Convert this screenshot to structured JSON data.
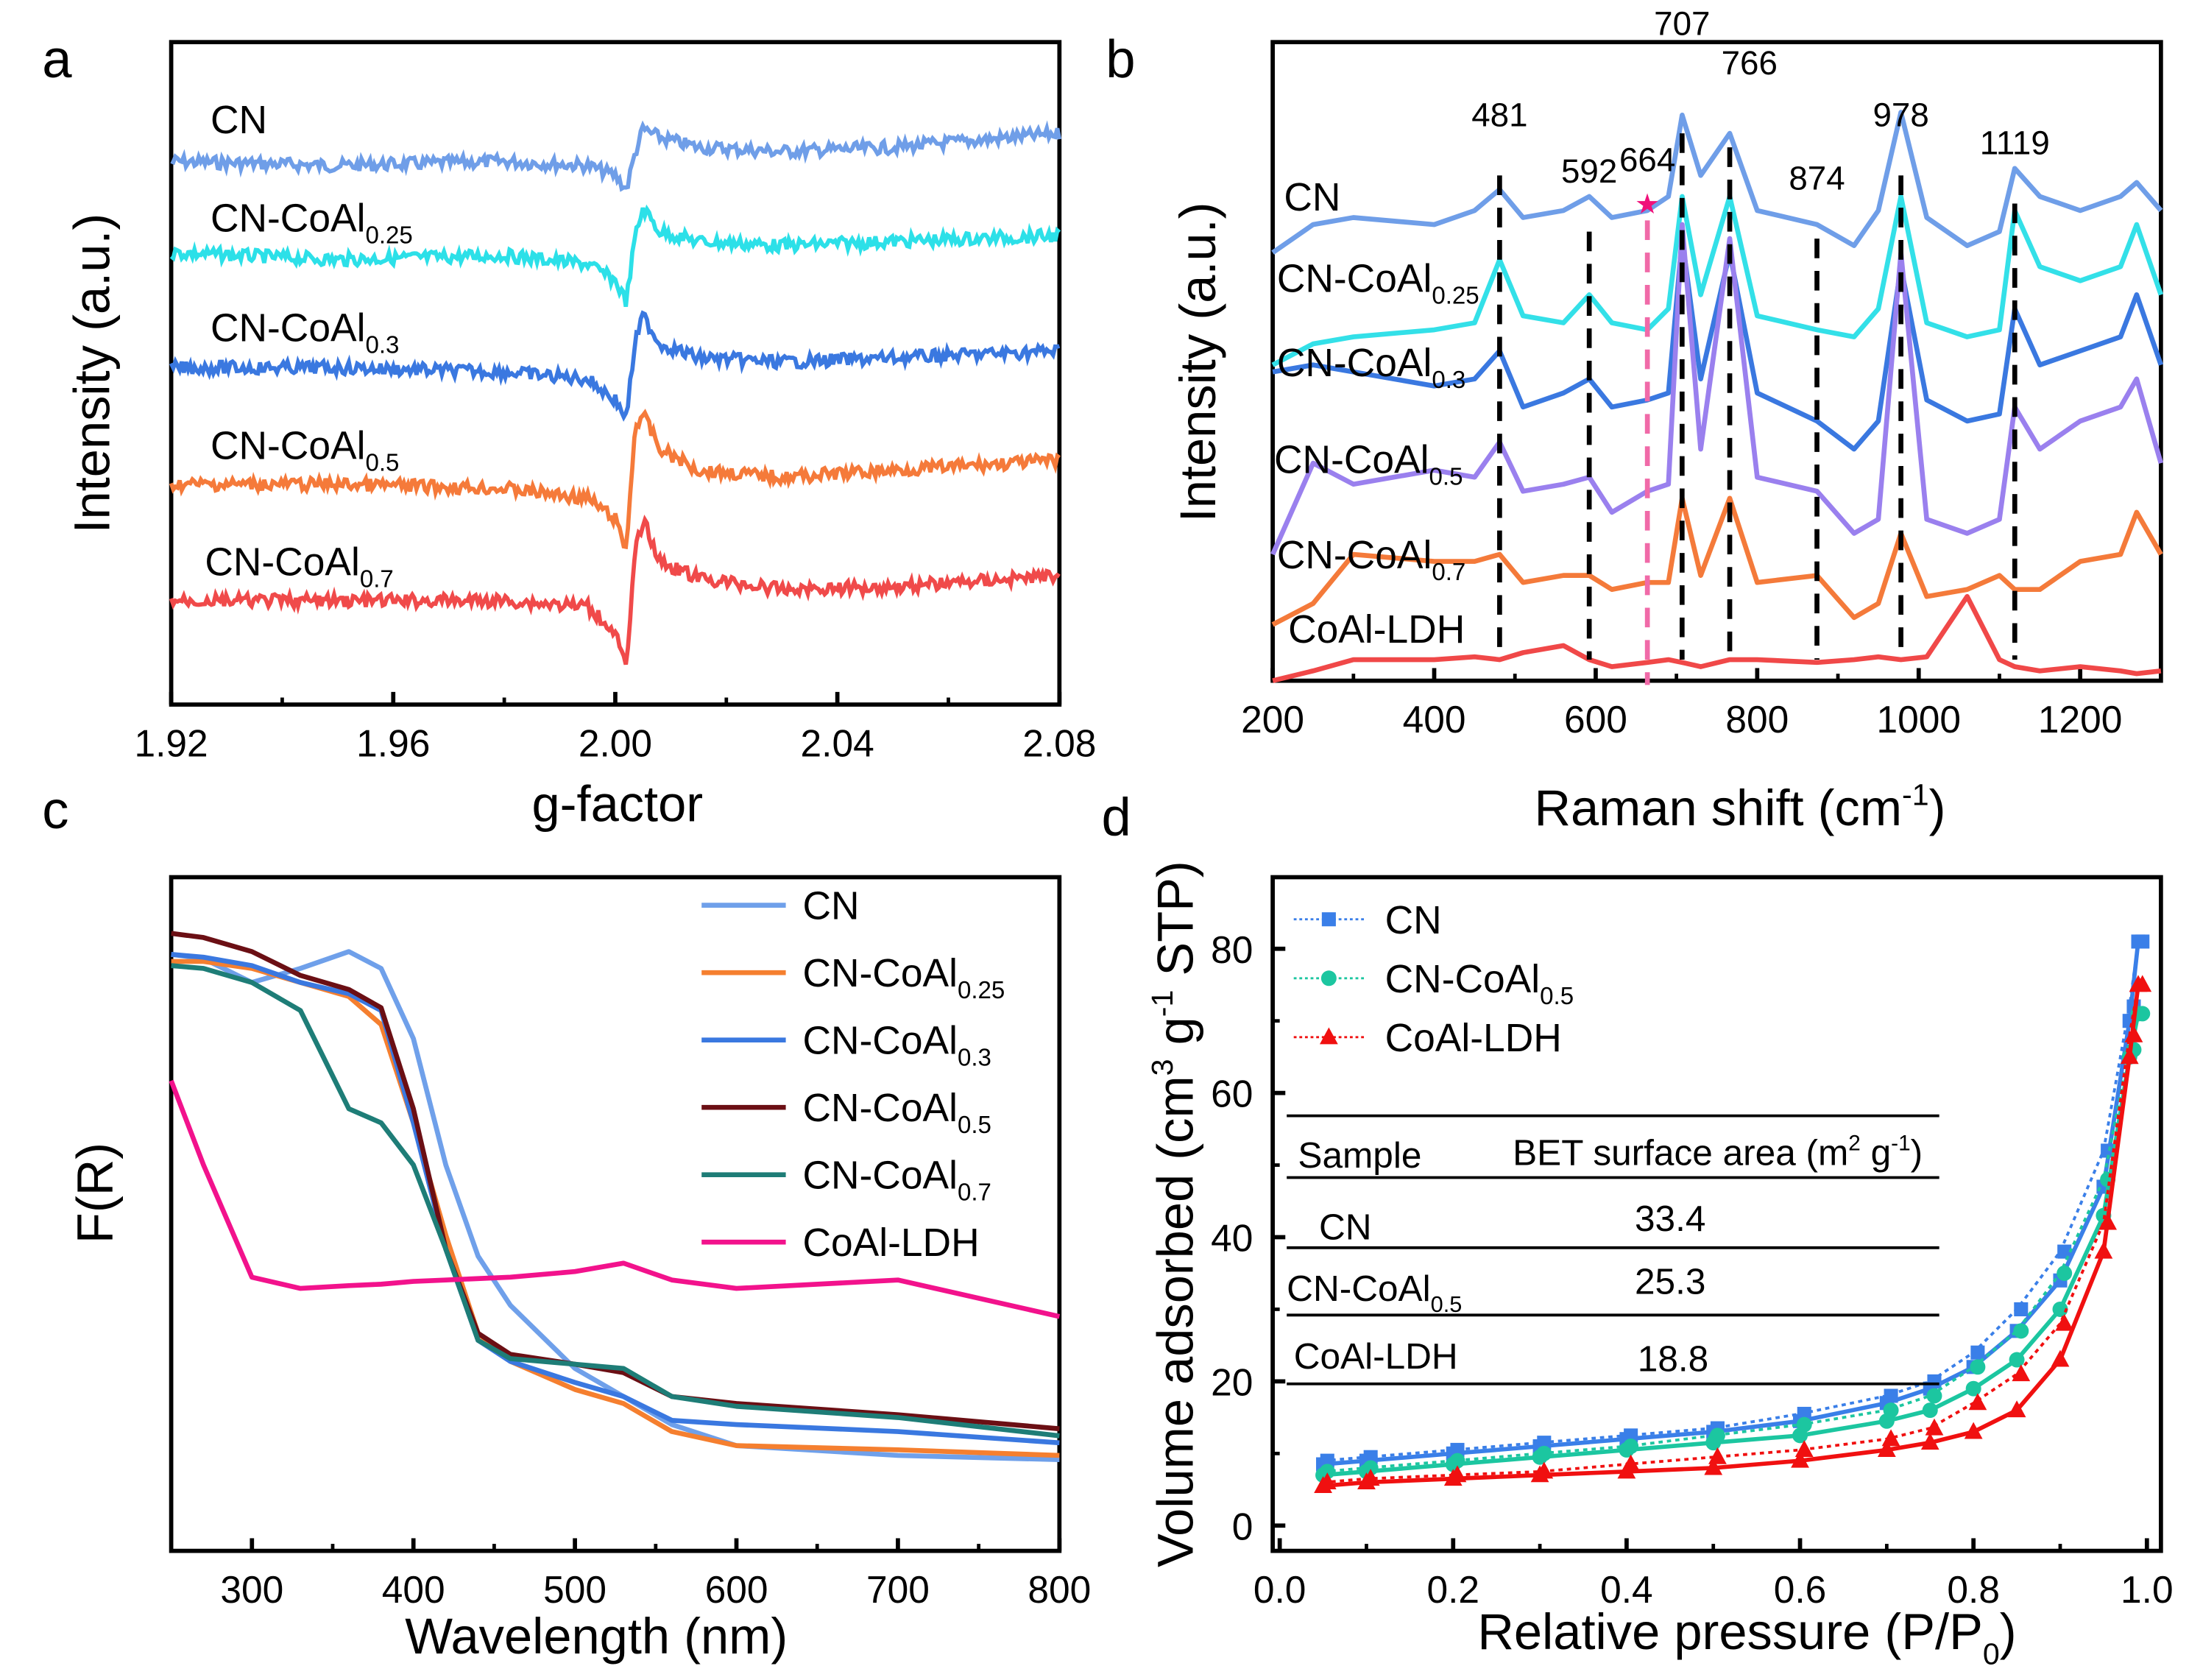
{
  "chart_data": [
    {
      "panel_letter": "a",
      "type": "line",
      "xlabel": "g-factor",
      "ylabel": "Intensity (a.u.)",
      "xlim": [
        1.92,
        2.08
      ],
      "xticks": [
        "1.92",
        "1.96",
        "2.00",
        "2.04",
        "2.08"
      ],
      "ylim": [
        0,
        472
      ],
      "grid": false,
      "x": [
        1.92,
        1.95,
        1.98,
        1.995,
        2.0,
        2.002,
        2.0035,
        2.005,
        2.008,
        2.015,
        2.03,
        2.05,
        2.08
      ],
      "series": [
        {
          "label": {
            "base": "CN",
            "sub": ""
          },
          "color": "#6f9ee8",
          "values": [
            387,
            384,
            387,
            384,
            377,
            367,
            392,
            410,
            404,
            397,
            394,
            397,
            407
          ]
        },
        {
          "label": {
            "base": "CN-CoAl",
            "sub": "0.25"
          },
          "color": "#2ce0e8",
          "values": [
            322,
            317,
            320,
            314,
            302,
            287,
            332,
            354,
            337,
            330,
            327,
            330,
            334
          ]
        },
        {
          "label": {
            "base": "CN-CoAl",
            "sub": "0.3"
          },
          "color": "#3a78e0",
          "values": [
            240,
            240,
            237,
            232,
            217,
            204,
            257,
            277,
            257,
            247,
            244,
            247,
            252
          ]
        },
        {
          "label": {
            "base": "CN-CoAl",
            "sub": "0.5"
          },
          "color": "#f57a3a",
          "values": [
            157,
            157,
            154,
            147,
            132,
            110,
            197,
            207,
            182,
            167,
            162,
            167,
            174
          ]
        },
        {
          "label": {
            "base": "CN-CoAl",
            "sub": "0.7"
          },
          "color": "#f04a4a",
          "values": [
            74,
            74,
            74,
            70,
            52,
            24,
            107,
            132,
            102,
            90,
            82,
            84,
            92
          ]
        }
      ]
    },
    {
      "panel_letter": "b",
      "type": "line",
      "xlabel": {
        "base": "Raman shift (cm",
        "sup": "-1",
        "end": ")"
      },
      "ylabel": "Intensity (a.u.)",
      "xlim": [
        200,
        1300
      ],
      "xticks": [
        "200",
        "400",
        "600",
        "800",
        "1000",
        "1200"
      ],
      "ylim": [
        0,
        455
      ],
      "grid": false,
      "x": [
        200,
        250,
        300,
        400,
        450,
        481,
        510,
        560,
        592,
        620,
        664,
        690,
        707,
        730,
        766,
        800,
        874,
        920,
        950,
        978,
        1010,
        1060,
        1100,
        1119,
        1150,
        1200,
        1250,
        1270,
        1300
      ],
      "series": [
        {
          "label": {
            "base": "CN",
            "sub": ""
          },
          "color": "#6f9ee8",
          "values": [
            305,
            325,
            330,
            325,
            335,
            350,
            330,
            335,
            345,
            330,
            335,
            345,
            403,
            360,
            390,
            335,
            325,
            310,
            335,
            405,
            330,
            310,
            320,
            365,
            345,
            335,
            345,
            355,
            335
          ]
        },
        {
          "label": {
            "base": "CN-CoAl",
            "sub": "0.25"
          },
          "color": "#33e0e8",
          "values": [
            225,
            240,
            245,
            250,
            255,
            300,
            260,
            255,
            275,
            255,
            250,
            265,
            345,
            275,
            345,
            260,
            250,
            245,
            265,
            345,
            255,
            245,
            250,
            335,
            295,
            285,
            295,
            325,
            275
          ]
        },
        {
          "label": {
            "base": "CN-CoAl",
            "sub": "0.3"
          },
          "color": "#3a78e0",
          "values": [
            220,
            225,
            220,
            210,
            215,
            235,
            195,
            205,
            215,
            195,
            200,
            205,
            315,
            215,
            305,
            205,
            185,
            165,
            185,
            295,
            200,
            185,
            190,
            265,
            225,
            235,
            245,
            275,
            225
          ]
        },
        {
          "label": {
            "base": "CN-CoAl",
            "sub": "0.5"
          },
          "color": "#9a80ee",
          "values": [
            90,
            155,
            140,
            150,
            145,
            170,
            135,
            140,
            145,
            120,
            135,
            140,
            325,
            165,
            315,
            145,
            135,
            105,
            115,
            305,
            115,
            105,
            115,
            195,
            165,
            185,
            195,
            215,
            155
          ]
        },
        {
          "label": {
            "base": "CN-CoAl",
            "sub": "0.7"
          },
          "color": "#f47a3a",
          "values": [
            40,
            55,
            90,
            85,
            85,
            90,
            70,
            75,
            75,
            65,
            70,
            70,
            130,
            75,
            130,
            70,
            75,
            45,
            55,
            105,
            60,
            65,
            75,
            65,
            65,
            85,
            90,
            120,
            90
          ]
        },
        {
          "label": {
            "base": "CoAl-LDH",
            "sub": ""
          },
          "color": "#f04848",
          "values": [
            0,
            7,
            15,
            15,
            17,
            15,
            20,
            25,
            15,
            10,
            13,
            15,
            13,
            10,
            15,
            15,
            13,
            15,
            17,
            15,
            17,
            60,
            15,
            10,
            7,
            10,
            7,
            5,
            7
          ]
        }
      ],
      "peak_annotations": [
        {
          "label": "481",
          "x": 481,
          "color": "#000000"
        },
        {
          "label": "592",
          "x": 592,
          "color": "#000000"
        },
        {
          "label": "664",
          "x": 664,
          "color": "#f06aa8",
          "marker": "star",
          "marker_color": "#f0107a"
        },
        {
          "label": "707",
          "x": 707,
          "color": "#000000"
        },
        {
          "label": "766",
          "x": 766,
          "color": "#000000"
        },
        {
          "label": "874",
          "x": 874,
          "color": "#000000"
        },
        {
          "label": "978",
          "x": 978,
          "color": "#000000"
        },
        {
          "label": "1119",
          "x": 1119,
          "color": "#000000"
        }
      ]
    },
    {
      "panel_letter": "c",
      "type": "line",
      "xlabel": "Wavelength (nm)",
      "ylabel": "F(R)",
      "xlim": [
        250,
        800
      ],
      "xticks": [
        "300",
        "400",
        "500",
        "600",
        "700",
        "800"
      ],
      "ylim": [
        0,
        480
      ],
      "grid": false,
      "legend": "top-right",
      "x": [
        250,
        270,
        300,
        330,
        360,
        380,
        400,
        420,
        440,
        460,
        500,
        530,
        560,
        600,
        700,
        800
      ],
      "series": [
        {
          "label": {
            "base": "CN",
            "sub": ""
          },
          "color": "#6fa0ea",
          "values": [
            425,
            422,
            405,
            415,
            427,
            415,
            365,
            275,
            210,
            175,
            130,
            110,
            90,
            75,
            68,
            65
          ]
        },
        {
          "label": {
            "base": "CN-CoAl",
            "sub": "0.25"
          },
          "color": "#f57f2f",
          "values": [
            420,
            420,
            415,
            405,
            395,
            375,
            305,
            225,
            155,
            135,
            115,
            105,
            85,
            75,
            72,
            68
          ]
        },
        {
          "label": {
            "base": "CN-CoAl",
            "sub": "0.3"
          },
          "color": "#3a78e0",
          "values": [
            425,
            423,
            417,
            405,
            397,
            385,
            305,
            215,
            150,
            135,
            120,
            110,
            93,
            90,
            85,
            77
          ]
        },
        {
          "label": {
            "base": "CN-CoAl",
            "sub": "0.5"
          },
          "color": "#6b0f14",
          "values": [
            440,
            437,
            427,
            410,
            400,
            387,
            315,
            215,
            155,
            140,
            133,
            127,
            110,
            105,
            97,
            87
          ]
        },
        {
          "label": {
            "base": "CN-CoAl",
            "sub": "0.7"
          },
          "color": "#1e7d77",
          "values": [
            417,
            415,
            405,
            385,
            315,
            305,
            275,
            215,
            150,
            137,
            133,
            130,
            110,
            103,
            95,
            82
          ]
        },
        {
          "label": {
            "base": "CoAl-LDH",
            "sub": ""
          },
          "color": "#f2128c",
          "values": [
            335,
            275,
            195,
            187,
            189,
            190,
            192,
            193,
            194,
            195,
            199,
            205,
            193,
            187,
            193,
            167
          ]
        }
      ]
    },
    {
      "panel_letter": "d",
      "type": "line",
      "xlabel": {
        "base": "Relative pressure (P/P",
        "sub": "0",
        "end": ")"
      },
      "ylabel": {
        "base": "Volume adsorbed (cm",
        "sup1": "3",
        "mid": " g",
        "sup2": "-1",
        "end": " STP)"
      },
      "xlim": [
        0,
        1
      ],
      "xticks": [
        "0.0",
        "0.2",
        "0.4",
        "0.6",
        "0.8",
        "1.0"
      ],
      "ylim": [
        0,
        80
      ],
      "yticks": [
        "0",
        "20",
        "40",
        "60",
        "80"
      ],
      "grid": false,
      "legend": "top-left",
      "x": [
        0.05,
        0.1,
        0.2,
        0.3,
        0.4,
        0.5,
        0.6,
        0.7,
        0.75,
        0.8,
        0.85,
        0.9,
        0.95,
        0.98,
        0.99
      ],
      "series": [
        {
          "label": {
            "base": "CN",
            "sub": ""
          },
          "color": "#3a7fe8",
          "marker": "square",
          "adsorption": [
            8.5,
            9,
            10,
            11,
            12,
            13,
            14.5,
            17,
            19,
            22,
            27,
            34,
            47,
            70,
            81
          ],
          "desorption": [
            9,
            9.5,
            10.5,
            11.5,
            12.5,
            13.5,
            15.5,
            18,
            20,
            24,
            30,
            38,
            52,
            72,
            81
          ]
        },
        {
          "label": {
            "base": "CN-CoAl",
            "sub": "0.5"
          },
          "color": "#1cc6a0",
          "marker": "circle",
          "adsorption": [
            7,
            7.5,
            8.5,
            9.5,
            10.5,
            11.5,
            12.5,
            14.5,
            16,
            19,
            23,
            30,
            43,
            65,
            71
          ],
          "desorption": [
            7.5,
            8,
            9,
            10,
            11,
            12.5,
            14,
            16,
            18,
            22,
            27,
            35,
            48,
            66,
            71
          ]
        },
        {
          "label": {
            "base": "CoAl-LDH",
            "sub": ""
          },
          "color": "#f01010",
          "marker": "triangle",
          "adsorption": [
            5.5,
            6,
            6.5,
            7,
            7.5,
            8,
            9,
            10.5,
            11.5,
            13,
            16,
            23,
            38,
            65,
            75
          ],
          "desorption": [
            6,
            6.5,
            7,
            7.5,
            8.5,
            9.5,
            10.5,
            12,
            13.5,
            17,
            21,
            28,
            42,
            68,
            75
          ]
        }
      ],
      "table": {
        "header_sample": "Sample",
        "header_bet": {
          "base": "BET surface area (m",
          "sup1": "2",
          "mid": " g",
          "sup2": "-1",
          "end": ")"
        },
        "rows": [
          {
            "sample": {
              "base": "CN",
              "sub": ""
            },
            "bet": "33.4"
          },
          {
            "sample": {
              "base": "CN-CoAl",
              "sub": "0.5"
            },
            "bet": "25.3"
          },
          {
            "sample": {
              "base": "CoAl-LDH",
              "sub": ""
            },
            "bet": "18.8"
          }
        ]
      }
    }
  ]
}
